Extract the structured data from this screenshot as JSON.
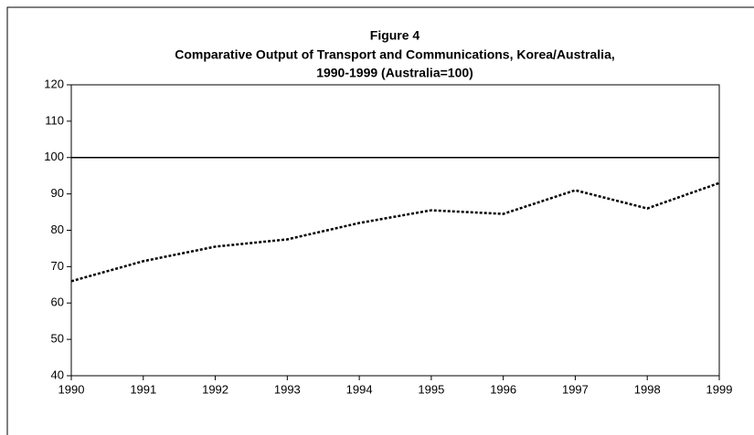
{
  "chart_data": {
    "type": "line",
    "title": [
      "Figure 4",
      "Comparative Output of Transport and Communications, Korea/Australia,",
      "1990-1999 (Australia=100)"
    ],
    "x": [
      1990,
      1991,
      1992,
      1993,
      1994,
      1995,
      1996,
      1997,
      1998,
      1999
    ],
    "values": [
      66,
      71.5,
      75.5,
      77.5,
      82,
      85.5,
      84.5,
      91,
      86,
      93
    ],
    "color": "#000000",
    "reference_line": 100,
    "xlim": [
      1990,
      1999
    ],
    "xticks": [
      1990,
      1991,
      1992,
      1993,
      1994,
      1995,
      1996,
      1997,
      1998,
      1999
    ],
    "ylim": [
      40,
      120
    ],
    "yticks": [
      40,
      50,
      60,
      70,
      80,
      90,
      100,
      110,
      120
    ]
  }
}
